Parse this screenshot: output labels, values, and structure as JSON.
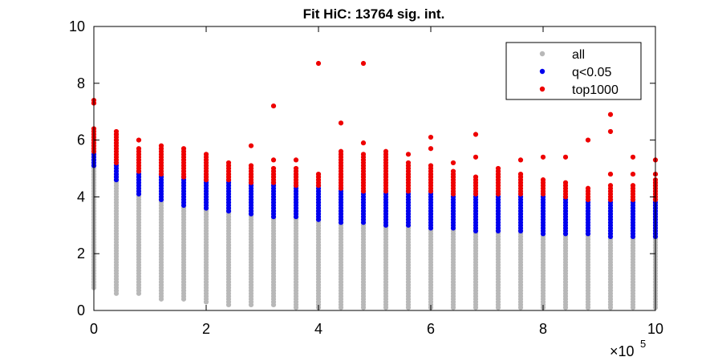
{
  "chart_data": {
    "type": "scatter",
    "title": "Fit HiC: 13764 sig. int.",
    "xlabel": "",
    "ylabel": "",
    "x_multiplier": "×10",
    "x_multiplier_exponent": "5",
    "xlim": [
      0,
      1000000
    ],
    "ylim": [
      0,
      10
    ],
    "xticks": [
      0,
      200000,
      400000,
      600000,
      800000,
      1000000
    ],
    "xtick_labels": [
      "0",
      "2",
      "4",
      "6",
      "8",
      "10"
    ],
    "yticks": [
      0,
      2,
      4,
      6,
      8,
      10
    ],
    "ytick_labels": [
      "0",
      "2",
      "4",
      "6",
      "8",
      "10"
    ],
    "grid": false,
    "legend_position": "top-right",
    "colors": {
      "all": "#b8b8b8",
      "q": "#0000ee",
      "top": "#ee0000"
    },
    "x_positions": [
      0,
      40000,
      80000,
      120000,
      160000,
      200000,
      240000,
      280000,
      320000,
      360000,
      400000,
      440000,
      480000,
      520000,
      560000,
      600000,
      640000,
      680000,
      720000,
      760000,
      800000,
      840000,
      880000,
      920000,
      960000,
      1000000
    ],
    "series": [
      {
        "name": "all",
        "description": "vertical y-range [min, max] per x position",
        "ranges": [
          [
            0.8,
            5.1
          ],
          [
            0.6,
            4.6
          ],
          [
            0.6,
            4.1
          ],
          [
            0.4,
            3.9
          ],
          [
            0.4,
            3.7
          ],
          [
            0.3,
            3.6
          ],
          [
            0.2,
            3.5
          ],
          [
            0.2,
            3.4
          ],
          [
            0.2,
            3.3
          ],
          [
            0.1,
            3.3
          ],
          [
            0.1,
            3.2
          ],
          [
            0.1,
            3.1
          ],
          [
            0.1,
            3.1
          ],
          [
            0.1,
            3.0
          ],
          [
            0.1,
            3.0
          ],
          [
            0.1,
            2.9
          ],
          [
            0.1,
            2.9
          ],
          [
            0.1,
            2.8
          ],
          [
            0.1,
            2.8
          ],
          [
            0.1,
            2.8
          ],
          [
            0.1,
            2.7
          ],
          [
            0.1,
            2.7
          ],
          [
            0.1,
            2.7
          ],
          [
            0.1,
            2.6
          ],
          [
            0.1,
            2.6
          ],
          [
            0.1,
            2.6
          ]
        ]
      },
      {
        "name": "q<0.05",
        "description": "vertical y-range [min, max] per x position",
        "ranges": [
          [
            5.1,
            5.6
          ],
          [
            4.6,
            5.2
          ],
          [
            4.1,
            4.9
          ],
          [
            3.9,
            4.8
          ],
          [
            3.7,
            4.7
          ],
          [
            3.6,
            4.6
          ],
          [
            3.5,
            4.6
          ],
          [
            3.4,
            4.5
          ],
          [
            3.3,
            4.5
          ],
          [
            3.3,
            4.4
          ],
          [
            3.2,
            4.4
          ],
          [
            3.1,
            4.3
          ],
          [
            3.1,
            4.2
          ],
          [
            3.0,
            4.2
          ],
          [
            3.0,
            4.2
          ],
          [
            2.9,
            4.2
          ],
          [
            2.9,
            4.1
          ],
          [
            2.8,
            4.1
          ],
          [
            2.8,
            4.1
          ],
          [
            2.8,
            4.1
          ],
          [
            2.7,
            4.1
          ],
          [
            2.7,
            4.0
          ],
          [
            2.7,
            3.9
          ],
          [
            2.6,
            3.9
          ],
          [
            2.6,
            3.9
          ],
          [
            2.6,
            3.9
          ]
        ]
      },
      {
        "name": "top1000",
        "description": "vertical y-range [min, max] per x position plus isolated outliers [x, y]",
        "ranges": [
          [
            5.6,
            6.4
          ],
          [
            5.2,
            6.3
          ],
          [
            4.9,
            5.7
          ],
          [
            4.8,
            5.8
          ],
          [
            4.7,
            5.7
          ],
          [
            4.6,
            5.5
          ],
          [
            4.6,
            5.2
          ],
          [
            4.5,
            5.1
          ],
          [
            4.5,
            5.0
          ],
          [
            4.4,
            5.0
          ],
          [
            4.4,
            4.8
          ],
          [
            4.3,
            5.6
          ],
          [
            4.2,
            5.5
          ],
          [
            4.2,
            5.5
          ],
          [
            4.2,
            5.2
          ],
          [
            4.2,
            5.1
          ],
          [
            4.1,
            4.9
          ],
          [
            4.1,
            4.7
          ],
          [
            4.1,
            4.9
          ],
          [
            4.1,
            4.8
          ],
          [
            4.1,
            4.6
          ],
          [
            4.0,
            4.5
          ],
          [
            3.9,
            4.3
          ],
          [
            3.9,
            4.4
          ],
          [
            3.9,
            4.4
          ],
          [
            3.9,
            4.6
          ]
        ],
        "outliers": [
          [
            0,
            7.3
          ],
          [
            0,
            7.4
          ],
          [
            40000,
            6.2
          ],
          [
            80000,
            6.0
          ],
          [
            280000,
            5.8
          ],
          [
            320000,
            7.2
          ],
          [
            320000,
            5.3
          ],
          [
            360000,
            5.3
          ],
          [
            400000,
            8.7
          ],
          [
            440000,
            6.6
          ],
          [
            480000,
            8.7
          ],
          [
            480000,
            5.9
          ],
          [
            520000,
            5.6
          ],
          [
            560000,
            5.5
          ],
          [
            600000,
            6.1
          ],
          [
            600000,
            5.7
          ],
          [
            640000,
            5.2
          ],
          [
            680000,
            6.2
          ],
          [
            680000,
            5.4
          ],
          [
            720000,
            5.0
          ],
          [
            760000,
            5.3
          ],
          [
            800000,
            5.4
          ],
          [
            840000,
            5.4
          ],
          [
            880000,
            6.0
          ],
          [
            920000,
            6.9
          ],
          [
            920000,
            6.3
          ],
          [
            920000,
            4.8
          ],
          [
            960000,
            5.4
          ],
          [
            960000,
            4.8
          ],
          [
            1000000,
            5.3
          ],
          [
            1000000,
            4.8
          ]
        ]
      }
    ]
  }
}
